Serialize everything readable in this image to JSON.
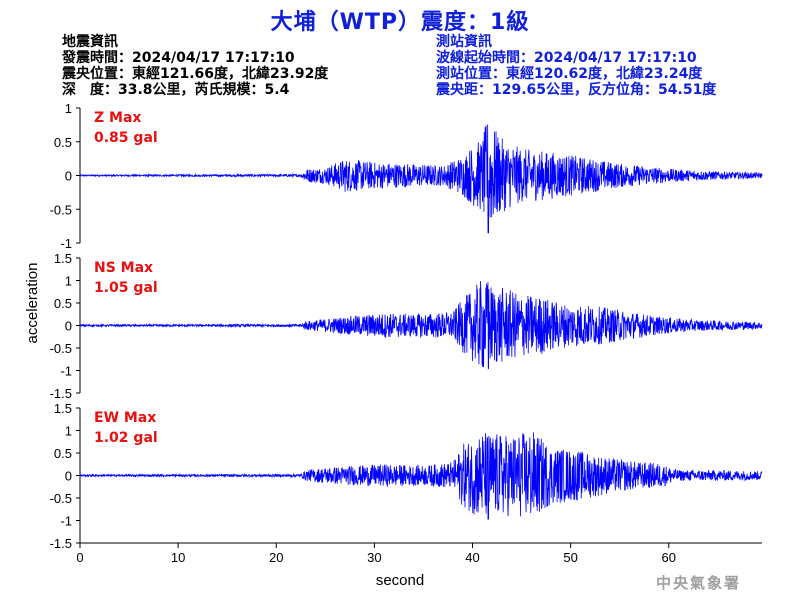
{
  "title": "大埔（WTP）震度：1級",
  "quake_info": {
    "heading": "地震資訊",
    "origin_time": "發震時間：2024/04/17 17:17:10",
    "epicenter": "震央位置：東經121.66度，北緯23.92度",
    "depth_magnitude": "深　度：33.8公里，芮氏規模：5.4"
  },
  "station_info": {
    "heading": "測站資訊",
    "wave_start_time": "波線起始時間：2024/04/17 17:17:10",
    "station_location": "測站位置：東經120.62度，北緯23.24度",
    "distance_azimuth": "震央距：129.65公里，反方位角：54.51度"
  },
  "agency": "中央氣象署",
  "chart_data": {
    "type": "line",
    "xlabel": "second",
    "ylabel": "acceleration",
    "xlim": [
      0,
      69.5
    ],
    "xticks": [
      0,
      10,
      20,
      30,
      40,
      50,
      60
    ],
    "line_color": "#0000ff",
    "grid": false,
    "panels": [
      {
        "component": "Z",
        "max_label": "Z Max",
        "max_value": "0.85 gal",
        "ylim": [
          -1,
          1
        ],
        "yticks": [
          "1",
          "0.5",
          "0",
          "-0.5",
          "-1"
        ],
        "yvalues": [
          1,
          0.5,
          0,
          -0.5,
          -1
        ],
        "envelope": [
          [
            0,
            0.01
          ],
          [
            22.5,
            0.02
          ],
          [
            23,
            0.1
          ],
          [
            25,
            0.12
          ],
          [
            27,
            0.25
          ],
          [
            30,
            0.2
          ],
          [
            33,
            0.18
          ],
          [
            37,
            0.15
          ],
          [
            39,
            0.3
          ],
          [
            40,
            0.45
          ],
          [
            41,
            0.55
          ],
          [
            41.5,
            0.85
          ],
          [
            42,
            0.75
          ],
          [
            43,
            0.55
          ],
          [
            45,
            0.4
          ],
          [
            48,
            0.35
          ],
          [
            51,
            0.28
          ],
          [
            55,
            0.18
          ],
          [
            60,
            0.1
          ],
          [
            65,
            0.06
          ],
          [
            69.5,
            0.04
          ]
        ]
      },
      {
        "component": "NS",
        "max_label": "NS Max",
        "max_value": "1.05 gal",
        "ylim": [
          -1.5,
          1.5
        ],
        "yticks": [
          "1.5",
          "1",
          "0.5",
          "0",
          "-0.5",
          "-1",
          "-1.5"
        ],
        "yvalues": [
          1.5,
          1,
          0.5,
          0,
          -0.5,
          -1,
          -1.5
        ],
        "envelope": [
          [
            0,
            0.02
          ],
          [
            22.5,
            0.03
          ],
          [
            23,
            0.1
          ],
          [
            25,
            0.15
          ],
          [
            28,
            0.22
          ],
          [
            31,
            0.28
          ],
          [
            34,
            0.26
          ],
          [
            38,
            0.3
          ],
          [
            39,
            0.6
          ],
          [
            40,
            0.8
          ],
          [
            41,
            1.05
          ],
          [
            42,
            0.9
          ],
          [
            43,
            0.85
          ],
          [
            45,
            0.7
          ],
          [
            47,
            0.65
          ],
          [
            49,
            0.5
          ],
          [
            52,
            0.45
          ],
          [
            55,
            0.35
          ],
          [
            59,
            0.2
          ],
          [
            63,
            0.12
          ],
          [
            69.5,
            0.08
          ]
        ]
      },
      {
        "component": "EW",
        "max_label": "EW Max",
        "max_value": "1.02 gal",
        "ylim": [
          -1.5,
          1.5
        ],
        "yticks": [
          "1.5",
          "1",
          "0.5",
          "0",
          "-0.5",
          "-1",
          "-1.5"
        ],
        "yvalues": [
          1.5,
          1,
          0.5,
          0,
          -0.5,
          -1,
          -1.5
        ],
        "envelope": [
          [
            0,
            0.02
          ],
          [
            22.5,
            0.03
          ],
          [
            23,
            0.12
          ],
          [
            25,
            0.18
          ],
          [
            28,
            0.22
          ],
          [
            31,
            0.25
          ],
          [
            35,
            0.22
          ],
          [
            38,
            0.3
          ],
          [
            39,
            0.7
          ],
          [
            40,
            0.85
          ],
          [
            41,
            1.0
          ],
          [
            42,
            0.95
          ],
          [
            44,
            0.9
          ],
          [
            46,
            1.02
          ],
          [
            48,
            0.65
          ],
          [
            51,
            0.55
          ],
          [
            54,
            0.4
          ],
          [
            57,
            0.3
          ],
          [
            59,
            0.28
          ],
          [
            61,
            0.12
          ],
          [
            65,
            0.12
          ],
          [
            69.5,
            0.1
          ]
        ]
      }
    ]
  }
}
